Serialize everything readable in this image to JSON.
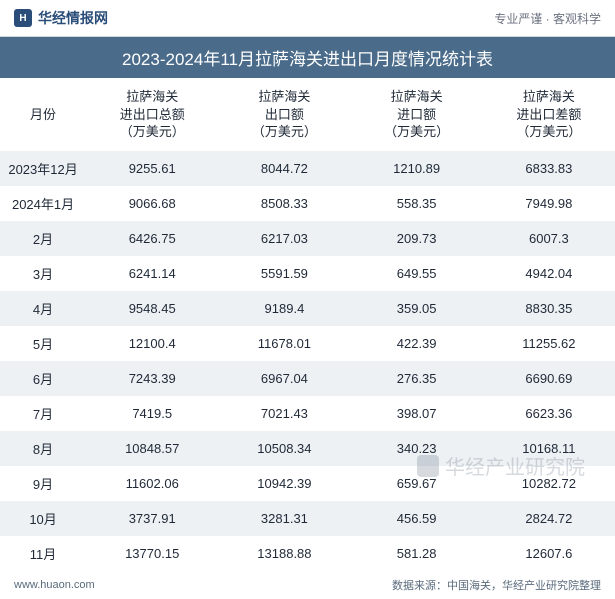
{
  "header": {
    "brand": "华经情报网",
    "tagline": "专业严谨  · 客观科学"
  },
  "title": "2023-2024年11月拉萨海关进出口月度情况统计表",
  "table": {
    "columns": [
      "月份",
      "拉萨海关\n进出口总额\n（万美元）",
      "拉萨海关\n出口额\n（万美元）",
      "拉萨海关\n进口额\n（万美元）",
      "拉萨海关\n进出口差额\n（万美元）"
    ],
    "rows": [
      [
        "2023年12月",
        "9255.61",
        "8044.72",
        "1210.89",
        "6833.83"
      ],
      [
        "2024年1月",
        "9066.68",
        "8508.33",
        "558.35",
        "7949.98"
      ],
      [
        "2月",
        "6426.75",
        "6217.03",
        "209.73",
        "6007.3"
      ],
      [
        "3月",
        "6241.14",
        "5591.59",
        "649.55",
        "4942.04"
      ],
      [
        "4月",
        "9548.45",
        "9189.4",
        "359.05",
        "8830.35"
      ],
      [
        "5月",
        "12100.4",
        "11678.01",
        "422.39",
        "11255.62"
      ],
      [
        "6月",
        "7243.39",
        "6967.04",
        "276.35",
        "6690.69"
      ],
      [
        "7月",
        "7419.5",
        "7021.43",
        "398.07",
        "6623.36"
      ],
      [
        "8月",
        "10848.57",
        "10508.34",
        "340.23",
        "10168.11"
      ],
      [
        "9月",
        "11602.06",
        "10942.39",
        "659.67",
        "10282.72"
      ],
      [
        "10月",
        "3737.91",
        "3281.31",
        "456.59",
        "2824.72"
      ],
      [
        "11月",
        "13770.15",
        "13188.88",
        "581.28",
        "12607.6"
      ]
    ],
    "header_bg": "#ffffff",
    "row_even_bg": "#eef1f4",
    "row_odd_bg": "#ffffff",
    "title_bg": "#4a6b8a",
    "title_color": "#ffffff",
    "text_color": "#1f2937",
    "font_size": 13
  },
  "footer": {
    "site": "www.huaon.com",
    "source": "数据来源：中国海关，华经产业研究院整理"
  },
  "watermark": "华经产业研究院"
}
